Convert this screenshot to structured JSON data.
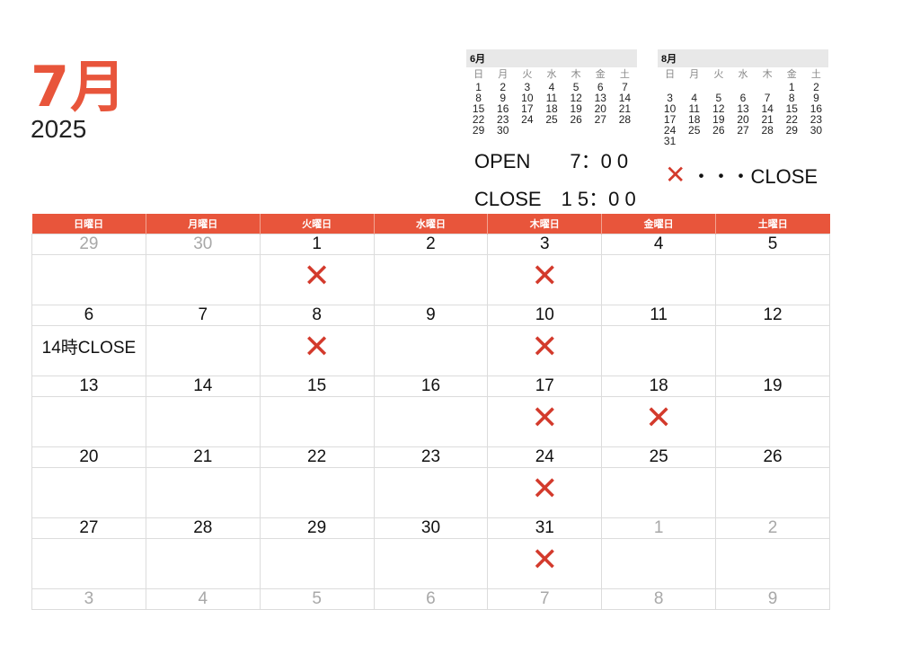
{
  "header": {
    "month": "7月",
    "year": "2025"
  },
  "mini_june": {
    "title": "6月",
    "dow": [
      "日",
      "月",
      "火",
      "水",
      "木",
      "金",
      "土"
    ],
    "weeks": [
      [
        "1",
        "2",
        "3",
        "4",
        "5",
        "6",
        "7"
      ],
      [
        "8",
        "9",
        "10",
        "11",
        "12",
        "13",
        "14"
      ],
      [
        "15",
        "16",
        "17",
        "18",
        "19",
        "20",
        "21"
      ],
      [
        "22",
        "23",
        "24",
        "25",
        "26",
        "27",
        "28"
      ],
      [
        "29",
        "30",
        "",
        "",
        "",
        "",
        ""
      ]
    ]
  },
  "mini_august": {
    "title": "8月",
    "dow": [
      "日",
      "月",
      "火",
      "水",
      "木",
      "金",
      "土"
    ],
    "weeks": [
      [
        "",
        "",
        "",
        "",
        "",
        "1",
        "2"
      ],
      [
        "3",
        "4",
        "5",
        "6",
        "7",
        "8",
        "9"
      ],
      [
        "10",
        "11",
        "12",
        "13",
        "14",
        "15",
        "16"
      ],
      [
        "17",
        "18",
        "19",
        "20",
        "21",
        "22",
        "23"
      ],
      [
        "24",
        "25",
        "26",
        "27",
        "28",
        "29",
        "30"
      ],
      [
        "31",
        "",
        "",
        "",
        "",
        "",
        ""
      ]
    ]
  },
  "hours": {
    "open": "OPEN　　7：0 0",
    "close": "CLOSE　1 5：0 0"
  },
  "legend": {
    "mark": "✕",
    "text": "・・・CLOSE"
  },
  "calendar": {
    "weekdays": [
      "日曜日",
      "月曜日",
      "火曜日",
      "水曜日",
      "木曜日",
      "金曜日",
      "土曜日"
    ],
    "weeks": [
      [
        {
          "d": "29",
          "muted": true,
          "mark": "",
          "note": ""
        },
        {
          "d": "30",
          "muted": true,
          "mark": "",
          "note": ""
        },
        {
          "d": "1",
          "muted": false,
          "mark": "✕",
          "note": ""
        },
        {
          "d": "2",
          "muted": false,
          "mark": "",
          "note": ""
        },
        {
          "d": "3",
          "muted": false,
          "mark": "✕",
          "note": ""
        },
        {
          "d": "4",
          "muted": false,
          "mark": "",
          "note": ""
        },
        {
          "d": "5",
          "muted": false,
          "mark": "",
          "note": ""
        }
      ],
      [
        {
          "d": "6",
          "muted": false,
          "mark": "",
          "note": "14時CLOSE"
        },
        {
          "d": "7",
          "muted": false,
          "mark": "",
          "note": ""
        },
        {
          "d": "8",
          "muted": false,
          "mark": "✕",
          "note": ""
        },
        {
          "d": "9",
          "muted": false,
          "mark": "",
          "note": ""
        },
        {
          "d": "10",
          "muted": false,
          "mark": "✕",
          "note": ""
        },
        {
          "d": "11",
          "muted": false,
          "mark": "",
          "note": ""
        },
        {
          "d": "12",
          "muted": false,
          "mark": "",
          "note": ""
        }
      ],
      [
        {
          "d": "13",
          "muted": false,
          "mark": "",
          "note": ""
        },
        {
          "d": "14",
          "muted": false,
          "mark": "",
          "note": ""
        },
        {
          "d": "15",
          "muted": false,
          "mark": "",
          "note": ""
        },
        {
          "d": "16",
          "muted": false,
          "mark": "",
          "note": ""
        },
        {
          "d": "17",
          "muted": false,
          "mark": "✕",
          "note": ""
        },
        {
          "d": "18",
          "muted": false,
          "mark": "✕",
          "note": ""
        },
        {
          "d": "19",
          "muted": false,
          "mark": "",
          "note": ""
        }
      ],
      [
        {
          "d": "20",
          "muted": false,
          "mark": "",
          "note": ""
        },
        {
          "d": "21",
          "muted": false,
          "mark": "",
          "note": ""
        },
        {
          "d": "22",
          "muted": false,
          "mark": "",
          "note": ""
        },
        {
          "d": "23",
          "muted": false,
          "mark": "",
          "note": ""
        },
        {
          "d": "24",
          "muted": false,
          "mark": "✕",
          "note": ""
        },
        {
          "d": "25",
          "muted": false,
          "mark": "",
          "note": ""
        },
        {
          "d": "26",
          "muted": false,
          "mark": "",
          "note": ""
        }
      ],
      [
        {
          "d": "27",
          "muted": false,
          "mark": "",
          "note": ""
        },
        {
          "d": "28",
          "muted": false,
          "mark": "",
          "note": ""
        },
        {
          "d": "29",
          "muted": false,
          "mark": "",
          "note": ""
        },
        {
          "d": "30",
          "muted": false,
          "mark": "",
          "note": ""
        },
        {
          "d": "31",
          "muted": false,
          "mark": "✕",
          "note": ""
        },
        {
          "d": "1",
          "muted": true,
          "mark": "",
          "note": ""
        },
        {
          "d": "2",
          "muted": true,
          "mark": "",
          "note": ""
        }
      ],
      [
        {
          "d": "3",
          "muted": true,
          "mark": "",
          "note": ""
        },
        {
          "d": "4",
          "muted": true,
          "mark": "",
          "note": ""
        },
        {
          "d": "5",
          "muted": true,
          "mark": "",
          "note": ""
        },
        {
          "d": "6",
          "muted": true,
          "mark": "",
          "note": ""
        },
        {
          "d": "7",
          "muted": true,
          "mark": "",
          "note": ""
        },
        {
          "d": "8",
          "muted": true,
          "mark": "",
          "note": ""
        },
        {
          "d": "9",
          "muted": true,
          "mark": "",
          "note": ""
        }
      ]
    ]
  },
  "colors": {
    "accent": "#e8553b",
    "closed_mark": "#d33a2c",
    "muted": "#a8a8a8"
  }
}
